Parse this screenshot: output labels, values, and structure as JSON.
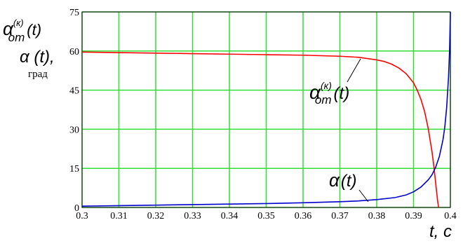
{
  "chart_data": {
    "type": "line",
    "title": "",
    "xlim": [
      0.3,
      0.4
    ],
    "ylim": [
      0,
      75
    ],
    "x_ticks": [
      "0.3",
      "0.31",
      "0.32",
      "0.33",
      "0.34",
      "0.35",
      "0.36",
      "0.37",
      "0.38",
      "0.39",
      "0.4"
    ],
    "y_ticks": [
      "0",
      "15",
      "30",
      "45",
      "60",
      "75"
    ],
    "grid": true,
    "x_label": {
      "main": "t, c"
    },
    "y_label": {
      "line1_base": "α",
      "line1_superscript": "(к)",
      "line1_subscript": "от",
      "line1_arg": "(t)",
      "line2": "α (t),",
      "unit": "град"
    },
    "series": [
      {
        "name": "α_от^(к)(t)",
        "label_base": "α",
        "label_superscript": "(к)",
        "label_subscript": "от",
        "label_arg": "(t)",
        "color": "#ff0000",
        "points": [
          [
            0.3,
            59.6
          ],
          [
            0.31,
            59.4
          ],
          [
            0.32,
            59.2
          ],
          [
            0.33,
            59.0
          ],
          [
            0.34,
            58.8
          ],
          [
            0.35,
            58.6
          ],
          [
            0.36,
            58.4
          ],
          [
            0.365,
            58.2
          ],
          [
            0.37,
            58.0
          ],
          [
            0.375,
            57.6
          ],
          [
            0.378,
            57.0
          ],
          [
            0.38,
            56.6
          ],
          [
            0.382,
            56.0
          ],
          [
            0.384,
            55.0
          ],
          [
            0.386,
            53.5
          ],
          [
            0.388,
            51.3
          ],
          [
            0.39,
            47.8
          ],
          [
            0.391,
            45.0
          ],
          [
            0.392,
            41.5
          ],
          [
            0.393,
            36.8
          ],
          [
            0.394,
            30.2
          ],
          [
            0.395,
            21.5
          ],
          [
            0.3955,
            16.0
          ],
          [
            0.396,
            9.5
          ],
          [
            0.3965,
            3.0
          ],
          [
            0.3968,
            0
          ]
        ]
      },
      {
        "name": "α(t)",
        "label_base": "α",
        "label_arg": "(t)",
        "color": "#0000cc",
        "points": [
          [
            0.3,
            0.5
          ],
          [
            0.31,
            0.7
          ],
          [
            0.32,
            0.9
          ],
          [
            0.33,
            1.1
          ],
          [
            0.34,
            1.3
          ],
          [
            0.35,
            1.5
          ],
          [
            0.36,
            1.8
          ],
          [
            0.37,
            2.2
          ],
          [
            0.375,
            2.5
          ],
          [
            0.38,
            3.0
          ],
          [
            0.385,
            3.8
          ],
          [
            0.388,
            4.8
          ],
          [
            0.39,
            6.0
          ],
          [
            0.392,
            7.8
          ],
          [
            0.394,
            10.6
          ],
          [
            0.395,
            12.5
          ],
          [
            0.396,
            15.4
          ],
          [
            0.397,
            19.5
          ],
          [
            0.398,
            26.0
          ],
          [
            0.3985,
            31.0
          ],
          [
            0.399,
            38.5
          ],
          [
            0.3995,
            50.0
          ],
          [
            0.3998,
            61.0
          ],
          [
            0.4,
            75.0
          ]
        ]
      }
    ],
    "colors": {
      "grid": "#33dd33",
      "axes": "#000000"
    }
  }
}
